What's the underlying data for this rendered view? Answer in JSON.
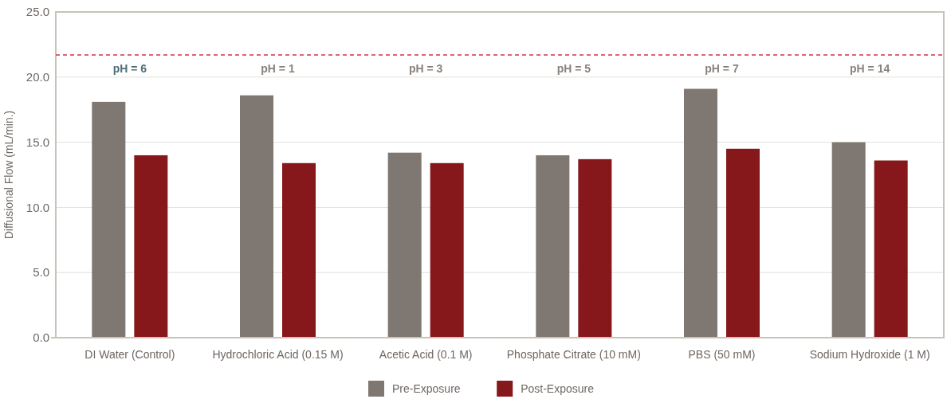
{
  "chart_data": {
    "type": "bar",
    "ylabel": "Diffusional Flow (mL/min.)",
    "categories": [
      "DI Water (Control)",
      "Hydrochloric Acid (0.15 M)",
      "Acetic Acid (0.1 M)",
      "Phosphate Citrate (10 mM)",
      "PBS (50 mM)",
      "Sodium Hydroxide (1 M)"
    ],
    "series": [
      {
        "name": "Pre-Exposure",
        "color": "#7f7771",
        "values": [
          18.1,
          18.6,
          14.2,
          14.0,
          19.1,
          15.0
        ]
      },
      {
        "name": "Post-Exposure",
        "color": "#86171b",
        "values": [
          14.0,
          13.4,
          13.4,
          13.7,
          14.5,
          13.6
        ]
      }
    ],
    "ylim": [
      0,
      25
    ],
    "yticks": [
      {
        "value": 0,
        "label": "0.0"
      },
      {
        "value": 5,
        "label": "5.0"
      },
      {
        "value": 10,
        "label": "10.0"
      },
      {
        "value": 15,
        "label": "15.0"
      },
      {
        "value": 20,
        "label": "20.0"
      },
      {
        "value": 25,
        "label": "25.0"
      }
    ],
    "grid": "y",
    "legend": "bottom",
    "ref_lines": [
      {
        "axis": "y",
        "value": 21.7,
        "color": "#d9303c",
        "line_style": "dashed"
      }
    ],
    "annotations": [
      "pH = 6",
      "pH = 1",
      "pH = 3",
      "pH = 5",
      "pH = 7",
      "pH = 14"
    ]
  }
}
